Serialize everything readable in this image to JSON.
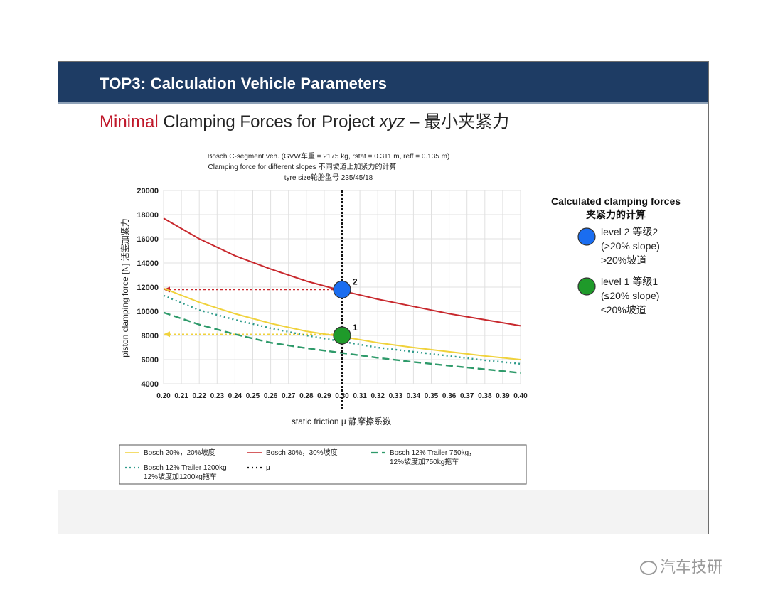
{
  "slide": {
    "header_title": "TOP3: Calculation Vehicle Parameters",
    "subtitle_accent": "Minimal",
    "subtitle_rest": " Clamping Forces for Project ",
    "subtitle_italic": "xyz",
    "subtitle_tail": " – 最小夹紧力"
  },
  "side_legend": {
    "title_en": "Calculated clamping forces",
    "title_cn": "夹紧力的计算",
    "level2": {
      "line1": "level 2 等级2",
      "line2": "(>20% slope)",
      "line3": ">20%坡道",
      "color": "#1a6df0"
    },
    "level1": {
      "line1": "level 1 等级1",
      "line2": "(≤20% slope)",
      "line3": "≤20%坡道",
      "color": "#1f9a2a"
    }
  },
  "watermark": {
    "text": "汽车技研"
  },
  "chart_data": {
    "type": "line",
    "title": "Bosch C-segment veh. (GVW车重 = 2175 kg, rstat = 0.311 m, reff = 0.135 m)",
    "subtitle1": "Clamping force for different slopes 不同坡道上加紧力的计算",
    "subtitle2": "tyre size轮胎型号 235/45/18",
    "xlabel": "static friction μ 静摩擦系数",
    "ylabel": "piston clamping force [N] 活塞加紧力",
    "xlim": [
      0.2,
      0.4
    ],
    "ylim": [
      4000,
      20000
    ],
    "x_ticks": [
      "0.20",
      "0.21",
      "0.22",
      "0.23",
      "0.24",
      "0.25",
      "0.26",
      "0.27",
      "0.28",
      "0.29",
      "0.30",
      "0.31",
      "0.32",
      "0.33",
      "0.34",
      "0.35",
      "0.36",
      "0.37",
      "0.38",
      "0.39",
      "0.40"
    ],
    "y_ticks": [
      4000,
      6000,
      8000,
      10000,
      12000,
      14000,
      16000,
      18000,
      20000
    ],
    "x": [
      0.2,
      0.22,
      0.24,
      0.26,
      0.28,
      0.3,
      0.32,
      0.34,
      0.36,
      0.38,
      0.4
    ],
    "series": [
      {
        "name": "Bosch 20%，20%坡度",
        "color": "#f0d23c",
        "dash": "solid",
        "values": [
          11900,
          10750,
          9800,
          9000,
          8350,
          7900,
          7400,
          7000,
          6650,
          6300,
          6000
        ]
      },
      {
        "name": "Bosch 30%，30%坡度",
        "color": "#c8282d",
        "dash": "solid",
        "values": [
          17700,
          16000,
          14600,
          13500,
          12500,
          11700,
          11000,
          10400,
          9800,
          9300,
          8800
        ]
      },
      {
        "name": "Bosch 12% Trailer 750kg，12%坡度加750kg拖车",
        "color": "#2e9a6a",
        "dash": "long",
        "values": [
          9900,
          8900,
          8100,
          7400,
          6950,
          6550,
          6150,
          5800,
          5500,
          5200,
          4900
        ]
      },
      {
        "name": "Bosch 12% Trailer 1200kg 12%坡度加1200kg拖车",
        "color": "#2e9a8a",
        "dash": "dot",
        "values": [
          11300,
          10100,
          9300,
          8600,
          8000,
          7500,
          7000,
          6650,
          6300,
          5950,
          5650
        ]
      }
    ],
    "mu_line": {
      "name": "μ",
      "x": 0.3
    },
    "markers": [
      {
        "label": "2",
        "x": 0.3,
        "y": 11800,
        "color": "#1a6df0"
      },
      {
        "label": "1",
        "x": 0.3,
        "y": 8000,
        "color": "#1f9a2a"
      }
    ],
    "arrows": [
      {
        "y": 11800,
        "color": "#c8282d"
      },
      {
        "y": 8100,
        "color": "#f0d23c"
      }
    ],
    "legend": {
      "placement": "bottom",
      "items": [
        {
          "lines": [
            "Bosch 20%，20%坡度"
          ],
          "color": "#f0d23c",
          "dash": "solid"
        },
        {
          "lines": [
            "Bosch 30%，30%坡度"
          ],
          "color": "#c8282d",
          "dash": "solid"
        },
        {
          "lines": [
            "Bosch 12% Trailer 750kg，",
            "12%坡度加750kg拖车"
          ],
          "color": "#2e9a6a",
          "dash": "long"
        },
        {
          "lines": [
            "Bosch 12% Trailer 1200kg",
            "12%坡度加1200kg拖车"
          ],
          "color": "#2e9a8a",
          "dash": "dot"
        },
        {
          "lines": [
            "μ"
          ],
          "color": "#111111",
          "dash": "dot"
        }
      ]
    }
  }
}
